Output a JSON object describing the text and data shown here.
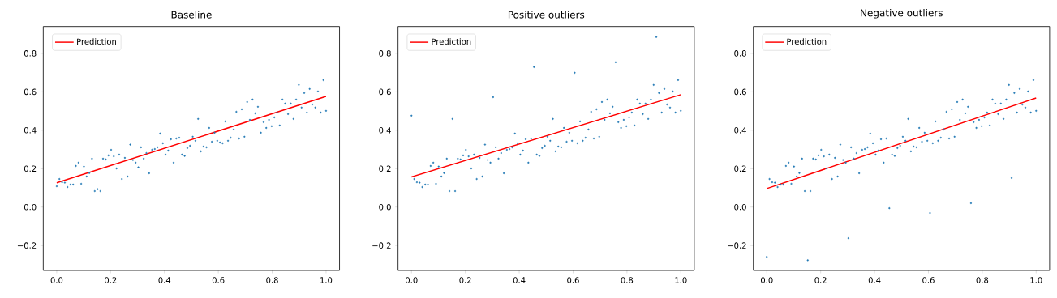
{
  "chart_data": [
    {
      "type": "scatter",
      "title": "Baseline",
      "xlim": [
        -0.05,
        1.05
      ],
      "ylim": [
        -0.33,
        0.94
      ],
      "legend": "top left",
      "xticks": [
        {
          "value": 0,
          "label": "0.0"
        },
        {
          "value": 0.2,
          "label": "0.2"
        },
        {
          "value": 0.4,
          "label": "0.4"
        },
        {
          "value": 0.6,
          "label": "0.6"
        },
        {
          "value": 0.8,
          "label": "0.8"
        },
        {
          "value": 1,
          "label": "1.0"
        }
      ],
      "yticks": [
        {
          "value": -0.2,
          "label": "−0.2"
        },
        {
          "value": 0,
          "label": "0.0"
        },
        {
          "value": 0.2,
          "label": "0.2"
        },
        {
          "value": 0.4,
          "label": "0.4"
        },
        {
          "value": 0.6,
          "label": "0.6"
        },
        {
          "value": 0.8,
          "label": "0.8"
        }
      ],
      "series": [
        {
          "marker": "circle",
          "color": "#1f77b4",
          "x": [
            0,
            0.01,
            0.02,
            0.03,
            0.04,
            0.051,
            0.061,
            0.071,
            0.081,
            0.091,
            0.101,
            0.111,
            0.121,
            0.131,
            0.141,
            0.152,
            0.162,
            0.172,
            0.182,
            0.192,
            0.202,
            0.212,
            0.222,
            0.232,
            0.242,
            0.253,
            0.263,
            0.273,
            0.283,
            0.293,
            0.303,
            0.313,
            0.323,
            0.333,
            0.343,
            0.354,
            0.364,
            0.374,
            0.384,
            0.394,
            0.404,
            0.414,
            0.424,
            0.434,
            0.444,
            0.455,
            0.465,
            0.475,
            0.485,
            0.495,
            0.505,
            0.515,
            0.525,
            0.535,
            0.545,
            0.556,
            0.566,
            0.576,
            0.586,
            0.596,
            0.606,
            0.616,
            0.626,
            0.636,
            0.646,
            0.657,
            0.667,
            0.677,
            0.687,
            0.697,
            0.707,
            0.717,
            0.727,
            0.737,
            0.747,
            0.758,
            0.768,
            0.778,
            0.788,
            0.798,
            0.808,
            0.818,
            0.828,
            0.838,
            0.848,
            0.859,
            0.869,
            0.879,
            0.889,
            0.899,
            0.909,
            0.919,
            0.929,
            0.939,
            0.949,
            0.96,
            0.97,
            0.98,
            0.99,
            1.0
          ],
          "values": [
            0.108,
            0.146,
            0.129,
            0.127,
            0.104,
            0.117,
            0.117,
            0.214,
            0.231,
            0.121,
            0.211,
            0.159,
            0.177,
            0.252,
            0.083,
            0.093,
            0.083,
            0.252,
            0.248,
            0.269,
            0.298,
            0.264,
            0.201,
            0.273,
            0.146,
            0.256,
            0.159,
            0.325,
            0.245,
            0.231,
            0.207,
            0.311,
            0.252,
            0.281,
            0.176,
            0.298,
            0.302,
            0.311,
            0.383,
            0.332,
            0.273,
            0.294,
            0.353,
            0.231,
            0.357,
            0.361,
            0.273,
            0.266,
            0.307,
            0.319,
            0.366,
            0.345,
            0.459,
            0.29,
            0.315,
            0.311,
            0.412,
            0.34,
            0.387,
            0.345,
            0.336,
            0.332,
            0.446,
            0.345,
            0.361,
            0.404,
            0.496,
            0.357,
            0.509,
            0.366,
            0.547,
            0.454,
            0.56,
            0.488,
            0.522,
            0.387,
            0.442,
            0.412,
            0.454,
            0.421,
            0.467,
            0.492,
            0.425,
            0.56,
            0.539,
            0.484,
            0.539,
            0.459,
            0.56,
            0.636,
            0.518,
            0.594,
            0.492,
            0.615,
            0.534,
            0.518,
            0.602,
            0.492,
            0.661,
            0.501
          ]
        },
        {
          "type": "line",
          "name": "Prediction",
          "color": "#ff0000",
          "x": [
            0,
            1
          ],
          "values": [
            0.126,
            0.576
          ]
        }
      ]
    },
    {
      "type": "scatter",
      "title": "Positive outliers",
      "xlim": [
        -0.05,
        1.05
      ],
      "ylim": [
        -0.33,
        0.94
      ],
      "legend": "top left",
      "xticks": [
        {
          "value": 0,
          "label": "0.0"
        },
        {
          "value": 0.2,
          "label": "0.2"
        },
        {
          "value": 0.4,
          "label": "0.4"
        },
        {
          "value": 0.6,
          "label": "0.6"
        },
        {
          "value": 0.8,
          "label": "0.8"
        },
        {
          "value": 1,
          "label": "1.0"
        }
      ],
      "yticks": [
        {
          "value": -0.2,
          "label": "−0.2"
        },
        {
          "value": 0,
          "label": "0.0"
        },
        {
          "value": 0.2,
          "label": "0.2"
        },
        {
          "value": 0.4,
          "label": "0.4"
        },
        {
          "value": 0.6,
          "label": "0.6"
        },
        {
          "value": 0.8,
          "label": "0.8"
        }
      ],
      "series": [
        {
          "marker": "circle",
          "color": "#1f77b4",
          "x": [
            0,
            0.01,
            0.02,
            0.03,
            0.04,
            0.051,
            0.061,
            0.071,
            0.081,
            0.091,
            0.101,
            0.111,
            0.121,
            0.131,
            0.141,
            0.152,
            0.162,
            0.172,
            0.182,
            0.192,
            0.202,
            0.212,
            0.222,
            0.232,
            0.242,
            0.253,
            0.263,
            0.273,
            0.283,
            0.293,
            0.303,
            0.313,
            0.323,
            0.333,
            0.343,
            0.354,
            0.364,
            0.374,
            0.384,
            0.394,
            0.404,
            0.414,
            0.424,
            0.434,
            0.444,
            0.455,
            0.465,
            0.475,
            0.485,
            0.495,
            0.505,
            0.515,
            0.525,
            0.535,
            0.545,
            0.556,
            0.566,
            0.576,
            0.586,
            0.596,
            0.606,
            0.616,
            0.626,
            0.636,
            0.646,
            0.657,
            0.667,
            0.677,
            0.687,
            0.697,
            0.707,
            0.717,
            0.727,
            0.737,
            0.747,
            0.758,
            0.768,
            0.778,
            0.788,
            0.798,
            0.808,
            0.818,
            0.828,
            0.838,
            0.848,
            0.859,
            0.869,
            0.879,
            0.889,
            0.899,
            0.909,
            0.919,
            0.929,
            0.939,
            0.949,
            0.96,
            0.97,
            0.98,
            0.99,
            1.0
          ],
          "values": [
            0.476,
            0.146,
            0.129,
            0.127,
            0.104,
            0.117,
            0.117,
            0.214,
            0.231,
            0.121,
            0.211,
            0.159,
            0.177,
            0.252,
            0.083,
            0.459,
            0.083,
            0.252,
            0.248,
            0.269,
            0.298,
            0.264,
            0.201,
            0.273,
            0.146,
            0.256,
            0.159,
            0.325,
            0.245,
            0.231,
            0.572,
            0.311,
            0.252,
            0.281,
            0.176,
            0.298,
            0.302,
            0.311,
            0.383,
            0.332,
            0.273,
            0.294,
            0.353,
            0.231,
            0.357,
            0.729,
            0.273,
            0.266,
            0.307,
            0.319,
            0.366,
            0.345,
            0.459,
            0.29,
            0.315,
            0.311,
            0.412,
            0.34,
            0.387,
            0.345,
            0.699,
            0.332,
            0.446,
            0.345,
            0.361,
            0.404,
            0.496,
            0.357,
            0.509,
            0.366,
            0.547,
            0.454,
            0.56,
            0.488,
            0.522,
            0.754,
            0.442,
            0.412,
            0.454,
            0.421,
            0.467,
            0.492,
            0.425,
            0.56,
            0.539,
            0.484,
            0.539,
            0.459,
            0.56,
            0.636,
            0.885,
            0.594,
            0.492,
            0.615,
            0.534,
            0.518,
            0.602,
            0.492,
            0.661,
            0.501
          ]
        },
        {
          "type": "line",
          "name": "Prediction",
          "color": "#ff0000",
          "x": [
            0,
            1
          ],
          "values": [
            0.157,
            0.585
          ]
        }
      ]
    },
    {
      "type": "scatter",
      "title": "Negative outliers",
      "xlim": [
        -0.05,
        1.05
      ],
      "ylim": [
        -0.33,
        0.94
      ],
      "legend": "top left",
      "xticks": [
        {
          "value": 0,
          "label": "0.0"
        },
        {
          "value": 0.2,
          "label": "0.2"
        },
        {
          "value": 0.4,
          "label": "0.4"
        },
        {
          "value": 0.6,
          "label": "0.6"
        },
        {
          "value": 0.8,
          "label": "0.8"
        },
        {
          "value": 1,
          "label": "1.0"
        }
      ],
      "yticks": [
        {
          "value": -0.2,
          "label": "−0.2"
        },
        {
          "value": 0,
          "label": "0.0"
        },
        {
          "value": 0.2,
          "label": "0.2"
        },
        {
          "value": 0.4,
          "label": "0.4"
        },
        {
          "value": 0.6,
          "label": "0.6"
        },
        {
          "value": 0.8,
          "label": "0.8"
        }
      ],
      "series": [
        {
          "marker": "circle",
          "color": "#1f77b4",
          "x": [
            0,
            0.01,
            0.02,
            0.03,
            0.04,
            0.051,
            0.061,
            0.071,
            0.081,
            0.091,
            0.101,
            0.111,
            0.121,
            0.131,
            0.141,
            0.152,
            0.162,
            0.172,
            0.182,
            0.192,
            0.202,
            0.212,
            0.222,
            0.232,
            0.242,
            0.253,
            0.263,
            0.273,
            0.283,
            0.293,
            0.303,
            0.313,
            0.323,
            0.333,
            0.343,
            0.354,
            0.364,
            0.374,
            0.384,
            0.394,
            0.404,
            0.414,
            0.424,
            0.434,
            0.444,
            0.455,
            0.465,
            0.475,
            0.485,
            0.495,
            0.505,
            0.515,
            0.525,
            0.535,
            0.545,
            0.556,
            0.566,
            0.576,
            0.586,
            0.596,
            0.606,
            0.616,
            0.626,
            0.636,
            0.646,
            0.657,
            0.667,
            0.677,
            0.687,
            0.697,
            0.707,
            0.717,
            0.727,
            0.737,
            0.747,
            0.758,
            0.768,
            0.778,
            0.788,
            0.798,
            0.808,
            0.818,
            0.828,
            0.838,
            0.848,
            0.859,
            0.869,
            0.879,
            0.889,
            0.899,
            0.909,
            0.919,
            0.929,
            0.939,
            0.949,
            0.96,
            0.97,
            0.98,
            0.99,
            1.0
          ],
          "values": [
            -0.259,
            0.146,
            0.129,
            0.127,
            0.104,
            0.117,
            0.117,
            0.214,
            0.231,
            0.121,
            0.211,
            0.159,
            0.177,
            0.252,
            0.083,
            -0.277,
            0.083,
            0.252,
            0.248,
            0.269,
            0.298,
            0.264,
            0.201,
            0.273,
            0.146,
            0.256,
            0.159,
            0.325,
            0.245,
            0.231,
            -0.162,
            0.311,
            0.252,
            0.281,
            0.176,
            0.298,
            0.302,
            0.311,
            0.383,
            0.332,
            0.273,
            0.294,
            0.353,
            0.231,
            0.357,
            -0.006,
            0.273,
            0.266,
            0.307,
            0.319,
            0.366,
            0.345,
            0.459,
            0.29,
            0.315,
            0.311,
            0.412,
            0.34,
            0.387,
            0.345,
            -0.031,
            0.332,
            0.446,
            0.345,
            0.361,
            0.404,
            0.496,
            0.357,
            0.509,
            0.366,
            0.547,
            0.454,
            0.56,
            0.488,
            0.522,
            0.02,
            0.442,
            0.412,
            0.454,
            0.421,
            0.467,
            0.492,
            0.425,
            0.56,
            0.539,
            0.484,
            0.539,
            0.459,
            0.56,
            0.636,
            0.151,
            0.594,
            0.492,
            0.615,
            0.534,
            0.518,
            0.602,
            0.492,
            0.661,
            0.501
          ]
        },
        {
          "type": "line",
          "name": "Prediction",
          "color": "#ff0000",
          "x": [
            0,
            1
          ],
          "values": [
            0.096,
            0.568
          ]
        }
      ]
    }
  ]
}
